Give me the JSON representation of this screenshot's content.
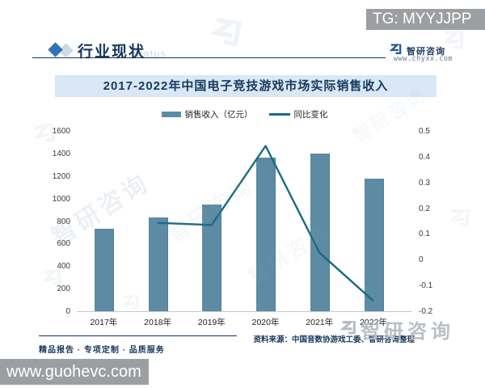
{
  "overlays": {
    "tg_badge": "TG: MYYJJPP",
    "site_badge": "www.guohevc.com"
  },
  "header": {
    "section_title": "行业现状",
    "watermark_en": "Status",
    "brand": {
      "name": "智研咨询",
      "url": "www.chyxx.com"
    }
  },
  "chart_data": {
    "type": "bar",
    "title": "2017-2022年中国电子竞技游戏市场实际销售收入",
    "categories": [
      "2017年",
      "2018年",
      "2019年",
      "2020年",
      "2021年",
      "2022年"
    ],
    "series": [
      {
        "name": "销售收入（亿元）",
        "type": "bar",
        "axis": "left",
        "values": [
          730.5,
          834.7,
          947.3,
          1365.6,
          1401.8,
          1178.0
        ]
      },
      {
        "name": "同比变化",
        "type": "line",
        "axis": "right",
        "values": [
          null,
          0.143,
          0.135,
          0.442,
          0.027,
          -0.16
        ]
      }
    ],
    "left_axis": {
      "min": 0,
      "max": 1600,
      "ticks": [
        0,
        200,
        400,
        600,
        800,
        1000,
        1200,
        1400,
        1600
      ]
    },
    "right_axis": {
      "min": -0.2,
      "max": 0.5,
      "ticks": [
        -0.2,
        -0.1,
        0,
        0.1,
        0.2,
        0.3,
        0.4,
        0.5
      ]
    },
    "colors": {
      "bar": "#5d8ba3",
      "line": "#1b6a87"
    },
    "legend_position": "top",
    "grid": false
  },
  "footer": {
    "tagline": "精品报告 · 专项定制 · 品质服务",
    "source": "资料来源：中国音数协游戏工委、智研咨询整理"
  },
  "watermark": {
    "brand": "智研咨询"
  }
}
